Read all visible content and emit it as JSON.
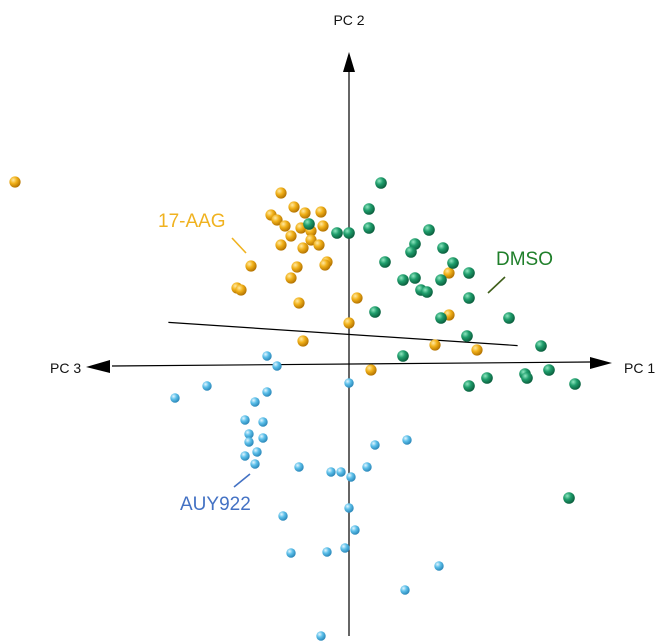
{
  "chart_data": {
    "type": "scatter",
    "title": "",
    "axes": [
      {
        "name": "PC 1"
      },
      {
        "name": "PC 2"
      },
      {
        "name": "PC 3"
      }
    ],
    "annotations": [
      {
        "text": "17-AAG",
        "series": "17-AAG"
      },
      {
        "text": "DMSO",
        "series": "DMSO"
      },
      {
        "text": "AUY922",
        "series": "AUY922"
      }
    ],
    "series": [
      {
        "name": "17-AAG",
        "color": "#e8a20c",
        "points": [
          [
            -334,
            182
          ],
          [
            -68,
            193
          ],
          [
            -55,
            207
          ],
          [
            -78,
            215
          ],
          [
            -72,
            220
          ],
          [
            -44,
            213
          ],
          [
            -28,
            212
          ],
          [
            -64,
            226
          ],
          [
            -48,
            228
          ],
          [
            -38,
            231
          ],
          [
            -26,
            226
          ],
          [
            -58,
            236
          ],
          [
            -38,
            240
          ],
          [
            -68,
            245
          ],
          [
            -30,
            245
          ],
          [
            -46,
            248
          ],
          [
            -22,
            262
          ],
          [
            -98,
            266
          ],
          [
            -52,
            267
          ],
          [
            -24,
            265
          ],
          [
            -58,
            278
          ],
          [
            -112,
            288
          ],
          [
            -108,
            290
          ],
          [
            -50,
            303
          ],
          [
            8,
            298
          ],
          [
            100,
            273
          ],
          [
            104,
            263
          ],
          [
            100,
            315
          ],
          [
            86,
            345
          ],
          [
            -46,
            341
          ],
          [
            0,
            323
          ],
          [
            128,
            350
          ],
          [
            22,
            370
          ]
        ]
      },
      {
        "name": "DMSO",
        "color": "#1d9a6a",
        "points": [
          [
            32,
            183
          ],
          [
            20,
            209
          ],
          [
            -40,
            224
          ],
          [
            -12,
            233
          ],
          [
            0,
            233
          ],
          [
            20,
            228
          ],
          [
            80,
            230
          ],
          [
            66,
            244
          ],
          [
            62,
            252
          ],
          [
            94,
            248
          ],
          [
            36,
            262
          ],
          [
            104,
            263
          ],
          [
            120,
            273
          ],
          [
            54,
            280
          ],
          [
            66,
            278
          ],
          [
            72,
            290
          ],
          [
            78,
            292
          ],
          [
            92,
            280
          ],
          [
            120,
            298
          ],
          [
            26,
            312
          ],
          [
            92,
            318
          ],
          [
            160,
            318
          ],
          [
            118,
            336
          ],
          [
            192,
            346
          ],
          [
            54,
            356
          ],
          [
            200,
            370
          ],
          [
            176,
            374
          ],
          [
            138,
            378
          ],
          [
            178,
            378
          ],
          [
            120,
            386
          ],
          [
            226,
            384
          ],
          [
            220,
            498
          ]
        ]
      },
      {
        "name": "AUY922",
        "color": "#5bbde6",
        "points": [
          [
            -82,
            356
          ],
          [
            -72,
            366
          ],
          [
            -142,
            386
          ],
          [
            -174,
            398
          ],
          [
            -82,
            392
          ],
          [
            -94,
            402
          ],
          [
            0,
            383
          ],
          [
            -104,
            420
          ],
          [
            -86,
            422
          ],
          [
            -100,
            434
          ],
          [
            -86,
            438
          ],
          [
            -100,
            442
          ],
          [
            -92,
            452
          ],
          [
            -104,
            456
          ],
          [
            26,
            445
          ],
          [
            58,
            440
          ],
          [
            -94,
            464
          ],
          [
            18,
            467
          ],
          [
            -50,
            467
          ],
          [
            -18,
            472
          ],
          [
            -8,
            472
          ],
          [
            2,
            477
          ],
          [
            0,
            508
          ],
          [
            -66,
            516
          ],
          [
            6,
            530
          ],
          [
            -58,
            553
          ],
          [
            -22,
            552
          ],
          [
            -4,
            548
          ],
          [
            90,
            566
          ],
          [
            56,
            590
          ],
          [
            -28,
            636
          ]
        ]
      }
    ]
  }
}
